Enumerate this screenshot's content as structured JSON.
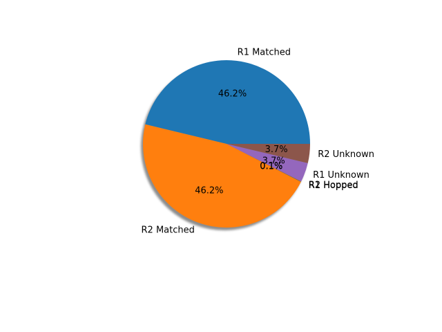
{
  "chart_data": {
    "type": "pie",
    "title": "",
    "slices": [
      {
        "label": "R1 Matched",
        "value": 46.2,
        "pct_label": "46.2%",
        "color": "#1f77b4"
      },
      {
        "label": "R2 Matched",
        "value": 46.2,
        "pct_label": "46.2%",
        "color": "#ff7f0e"
      },
      {
        "label": "R1 Hopped",
        "value": 0.05,
        "pct_label": "0.1%",
        "color": "#2ca02c"
      },
      {
        "label": "R2 Hopped",
        "value": 0.05,
        "pct_label": "0.1%",
        "color": "#d62728"
      },
      {
        "label": "R1 Unknown",
        "value": 3.7,
        "pct_label": "3.7%",
        "color": "#9467bd"
      },
      {
        "label": "R2 Unknown",
        "value": 3.7,
        "pct_label": "3.7%",
        "color": "#8c564b"
      }
    ],
    "start_angle_deg": 0,
    "direction": "counterclockwise",
    "shadow": true,
    "legend": "none"
  }
}
